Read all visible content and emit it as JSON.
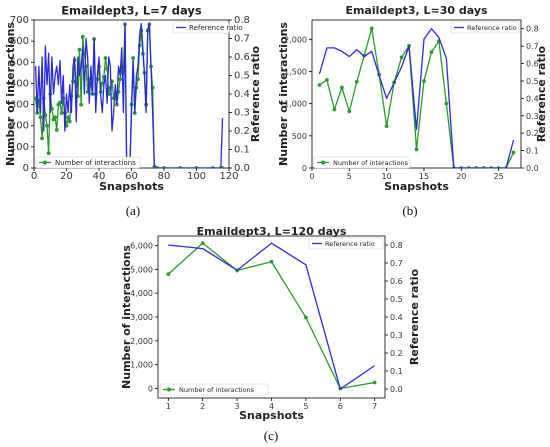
{
  "colors": {
    "green": "#2a9a2a",
    "blue": "#2a2ad8"
  },
  "panels": [
    "(a)",
    "(b)",
    "(c)"
  ],
  "chart_data": [
    {
      "type": "line",
      "title": "Emaildept3, L=7 days",
      "xlabel": "Snapshots",
      "ylabel": "Number of interactions",
      "ylabel_right": "Reference ratio",
      "xlim": [
        0,
        120
      ],
      "ylim": [
        0,
        700
      ],
      "ylim_right": [
        0,
        0.8
      ],
      "xticks": [
        0,
        20,
        40,
        60,
        80,
        100,
        120
      ],
      "yticks": [
        0,
        100,
        200,
        300,
        400,
        500,
        600,
        700
      ],
      "yticks_right": [
        0.0,
        0.1,
        0.2,
        0.3,
        0.4,
        0.5,
        0.6,
        0.7,
        0.8
      ],
      "legend_upper": "Reference ratio",
      "legend_lower": "Number of interactions",
      "series": [
        {
          "name": "Number of interactions",
          "axis": "left",
          "color": "green",
          "markers": true,
          "x": [
            1,
            2,
            3,
            4,
            5,
            6,
            7,
            8,
            9,
            10,
            11,
            12,
            13,
            14,
            15,
            16,
            17,
            18,
            19,
            20,
            21,
            22,
            23,
            24,
            25,
            26,
            27,
            28,
            29,
            30,
            31,
            32,
            33,
            34,
            35,
            36,
            37,
            38,
            39,
            40,
            41,
            42,
            43,
            44,
            45,
            46,
            47,
            48,
            49,
            50,
            51,
            52,
            53,
            54,
            55,
            56,
            57,
            58,
            59,
            60,
            61,
            62,
            63,
            64,
            65,
            66,
            67,
            68,
            69,
            70,
            71,
            72,
            73,
            74,
            75,
            76,
            80,
            90,
            100,
            110,
            115,
            116
          ],
          "y": [
            330,
            260,
            320,
            240,
            140,
            330,
            250,
            200,
            70,
            350,
            280,
            230,
            240,
            180,
            300,
            310,
            260,
            330,
            260,
            200,
            240,
            220,
            340,
            410,
            510,
            400,
            340,
            560,
            300,
            620,
            540,
            480,
            360,
            420,
            400,
            350,
            610,
            350,
            420,
            480,
            360,
            400,
            430,
            520,
            470,
            350,
            380,
            410,
            330,
            340,
            300,
            360,
            420,
            480,
            450,
            680,
            10,
            5,
            0,
            300,
            520,
            260,
            380,
            420,
            580,
            650,
            540,
            450,
            300,
            650,
            680,
            480,
            380,
            5,
            0,
            0,
            0,
            0,
            0,
            0,
            0,
            0
          ]
        },
        {
          "name": "Reference ratio",
          "axis": "right",
          "color": "blue",
          "markers": false,
          "x": [
            1,
            2,
            3,
            4,
            5,
            6,
            7,
            8,
            9,
            10,
            11,
            12,
            13,
            14,
            15,
            16,
            17,
            18,
            19,
            20,
            21,
            22,
            23,
            24,
            25,
            26,
            27,
            28,
            29,
            30,
            31,
            32,
            33,
            34,
            35,
            36,
            37,
            38,
            39,
            40,
            41,
            42,
            43,
            44,
            45,
            46,
            47,
            48,
            49,
            50,
            51,
            52,
            53,
            54,
            55,
            56,
            57,
            58,
            59,
            60,
            61,
            62,
            63,
            64,
            65,
            66,
            67,
            68,
            69,
            70,
            71,
            72,
            73,
            74,
            75,
            76,
            80,
            90,
            100,
            110,
            115,
            116
          ],
          "y": [
            0.55,
            0.3,
            0.55,
            0.3,
            0.6,
            0.2,
            0.66,
            0.45,
            0.62,
            0.3,
            0.6,
            0.4,
            0.5,
            0.55,
            0.45,
            0.58,
            0.35,
            0.5,
            0.2,
            0.4,
            0.3,
            0.45,
            0.3,
            0.55,
            0.6,
            0.25,
            0.6,
            0.5,
            0.55,
            0.65,
            0.4,
            0.7,
            0.6,
            0.35,
            0.55,
            0.4,
            0.7,
            0.3,
            0.5,
            0.6,
            0.4,
            0.3,
            0.45,
            0.5,
            0.35,
            0.6,
            0.55,
            0.2,
            0.3,
            0.45,
            0.35,
            0.55,
            0.5,
            0.65,
            0.3,
            0.78,
            0.05,
            0.0,
            0.0,
            0.3,
            0.58,
            0.3,
            0.5,
            0.55,
            0.72,
            0.78,
            0.65,
            0.5,
            0.3,
            0.75,
            0.78,
            0.55,
            0.3,
            0.02,
            0.0,
            0.0,
            0.0,
            0.0,
            0.0,
            0.0,
            0.0,
            0.27
          ]
        }
      ]
    },
    {
      "type": "line",
      "title": "Emaildept3, L=30 days",
      "xlabel": "Snapshots",
      "ylabel": "Number of interactions",
      "ylabel_right": "Reference ratio",
      "xlim": [
        0,
        28
      ],
      "ylim": [
        0,
        2300
      ],
      "ylim_right": [
        0,
        0.85
      ],
      "xticks": [
        0,
        5,
        10,
        15,
        20,
        25
      ],
      "yticks": [
        0,
        500,
        1000,
        1500,
        2000
      ],
      "yticks_right": [
        0.0,
        0.1,
        0.2,
        0.3,
        0.4,
        0.5,
        0.6,
        0.7,
        0.8
      ],
      "legend_upper": "Reference ratio",
      "legend_lower": "Number of interactions",
      "series": [
        {
          "name": "Number of interactions",
          "axis": "left",
          "color": "green",
          "markers": true,
          "x": [
            1,
            2,
            3,
            4,
            5,
            6,
            7,
            8,
            9,
            10,
            11,
            12,
            13,
            14,
            15,
            16,
            17,
            18,
            19,
            20,
            21,
            22,
            23,
            24,
            25,
            26,
            27
          ],
          "y": [
            1290,
            1370,
            910,
            1250,
            880,
            1340,
            1750,
            2170,
            1450,
            650,
            1330,
            1720,
            1900,
            290,
            1350,
            1800,
            1970,
            1000,
            0,
            0,
            0,
            0,
            0,
            0,
            0,
            0,
            240
          ]
        },
        {
          "name": "Reference ratio",
          "axis": "right",
          "color": "blue",
          "markers": false,
          "x": [
            1,
            2,
            3,
            4,
            5,
            6,
            7,
            8,
            9,
            10,
            11,
            12,
            13,
            14,
            15,
            16,
            17,
            18,
            19,
            20,
            21,
            22,
            23,
            24,
            25,
            26,
            27
          ],
          "y": [
            0.54,
            0.69,
            0.69,
            0.67,
            0.64,
            0.68,
            0.64,
            0.67,
            0.53,
            0.4,
            0.49,
            0.58,
            0.7,
            0.22,
            0.74,
            0.8,
            0.75,
            0.63,
            0.0,
            0.0,
            0.0,
            0.0,
            0.0,
            0.0,
            0.0,
            0.0,
            0.16
          ]
        }
      ]
    },
    {
      "type": "line",
      "title": "Emaildept3, L=120 days",
      "xlabel": "Snapshots",
      "ylabel": "Number of interactions",
      "ylabel_right": "Reference ratio",
      "xlim": [
        0.7,
        7.3
      ],
      "ylim": [
        -400,
        6400
      ],
      "ylim_right": [
        -0.05,
        0.85
      ],
      "xticks": [
        1,
        2,
        3,
        4,
        5,
        6,
        7
      ],
      "yticks": [
        0,
        1000,
        2000,
        3000,
        4000,
        5000,
        6000
      ],
      "yticks_right": [
        0.0,
        0.1,
        0.2,
        0.3,
        0.4,
        0.5,
        0.6,
        0.7,
        0.8
      ],
      "legend_upper": "Reference ratio",
      "legend_lower": "Number of interactions",
      "series": [
        {
          "name": "Number of interactions",
          "axis": "left",
          "color": "green",
          "markers": true,
          "x": [
            1,
            2,
            3,
            4,
            5,
            6,
            7
          ],
          "y": [
            4800,
            6100,
            4950,
            5320,
            2980,
            0,
            250
          ]
        },
        {
          "name": "Reference ratio",
          "axis": "right",
          "color": "blue",
          "markers": false,
          "x": [
            1,
            2,
            3,
            4,
            5,
            6,
            7
          ],
          "y": [
            0.8,
            0.78,
            0.66,
            0.81,
            0.69,
            0.0,
            0.13
          ]
        }
      ]
    }
  ]
}
